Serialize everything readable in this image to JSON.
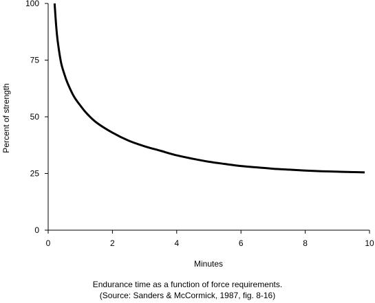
{
  "chart_data": {
    "type": "line",
    "title": "",
    "xlabel": "Minutes",
    "ylabel": "Percent of strength",
    "xlim": [
      0,
      10
    ],
    "ylim": [
      0,
      100
    ],
    "x_ticks": [
      0,
      2,
      4,
      6,
      8,
      10
    ],
    "y_ticks": [
      0,
      25,
      50,
      75,
      100
    ],
    "grid": false,
    "legend": "none",
    "series": [
      {
        "color": "#000000",
        "x": [
          0.2,
          0.25,
          0.3,
          0.4,
          0.5,
          0.6,
          0.8,
          1.0,
          1.2,
          1.5,
          2.0,
          2.5,
          3.0,
          3.5,
          4.0,
          4.5,
          5.0,
          5.5,
          6.0,
          6.5,
          7.0,
          7.5,
          8.0,
          8.5,
          9.0,
          9.5,
          9.85
        ],
        "y": [
          100,
          90,
          83,
          74,
          69,
          65,
          59,
          55,
          51.5,
          47.5,
          43,
          39.5,
          37,
          35,
          33,
          31.5,
          30.2,
          29.2,
          28.3,
          27.7,
          27.1,
          26.7,
          26.3,
          26.0,
          25.8,
          25.6,
          25.5
        ]
      }
    ]
  },
  "caption": {
    "line1": "Endurance time as a function of force requirements.",
    "line2": "(Source: Sanders & McCormick, 1987, fig. 8-16)"
  }
}
